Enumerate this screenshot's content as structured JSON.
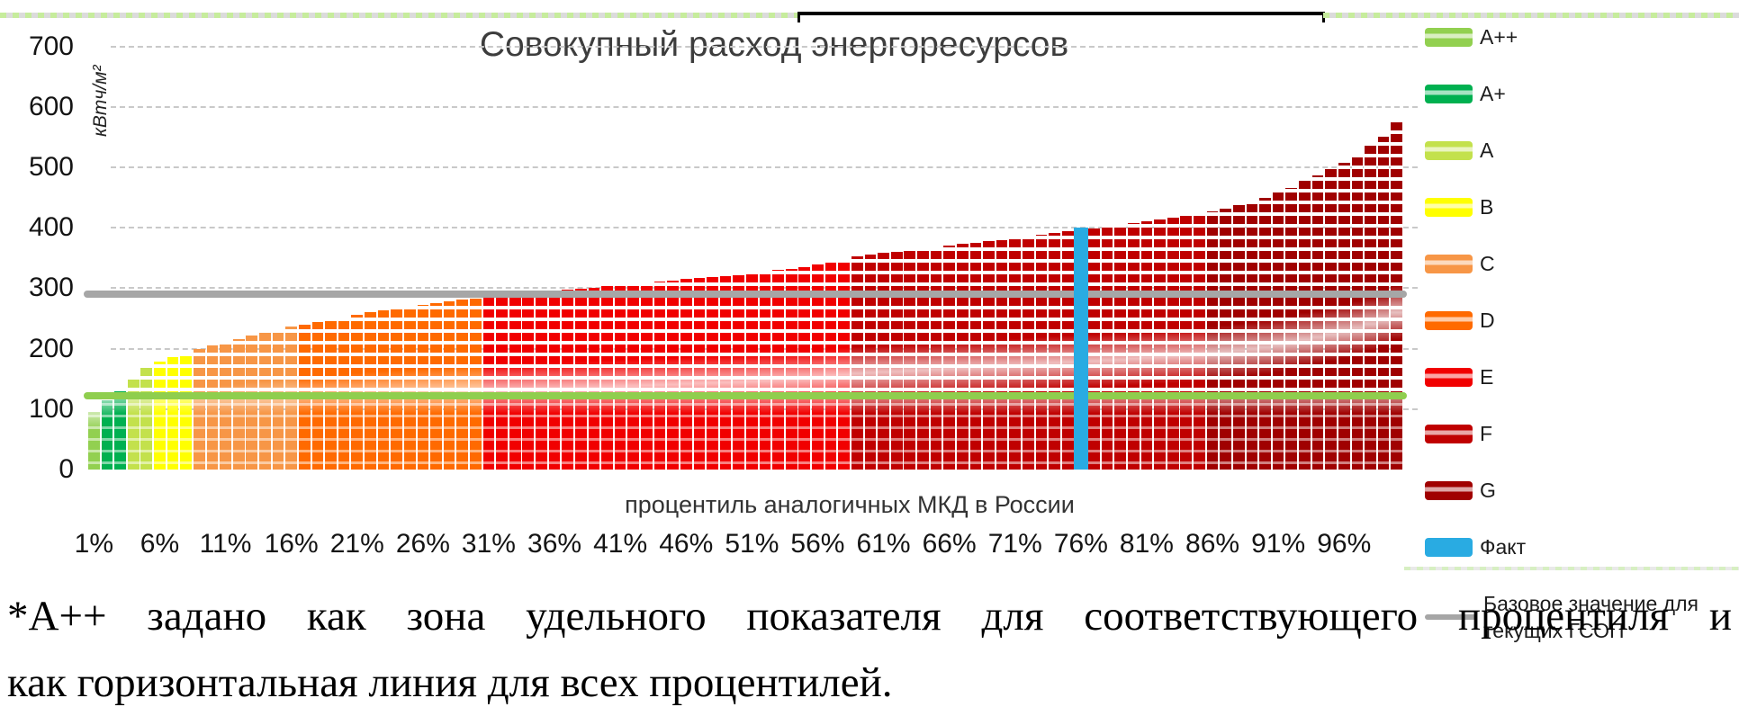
{
  "chart": {
    "title": "Совокупный расход энергоресурсов",
    "title_color": "#3d3d3d",
    "y_axis": {
      "unit": "кВтч/м²",
      "ticks": [
        700,
        600,
        500,
        400,
        300,
        200,
        100,
        0
      ],
      "max": 700
    },
    "x_axis": {
      "title": "процентиль аналогичных МКД в России",
      "tick_labels": [
        "1%",
        "6%",
        "11%",
        "16%",
        "21%",
        "26%",
        "31%",
        "36%",
        "41%",
        "46%",
        "51%",
        "56%",
        "61%",
        "66%",
        "71%",
        "76%",
        "81%",
        "86%",
        "91%",
        "96%"
      ]
    }
  },
  "chart_data": {
    "type": "bar",
    "x_unit": "percentile",
    "x_range": [
      1,
      100
    ],
    "ylim": [
      0,
      700
    ],
    "grid": "dashed horizontal every 100",
    "values": [
      95,
      115,
      135,
      155,
      168,
      178,
      186,
      193,
      199,
      205,
      211,
      216,
      221,
      226,
      231,
      236,
      240,
      244,
      248,
      252,
      256,
      260,
      263,
      266,
      269,
      272,
      275,
      278,
      281,
      283,
      286,
      288,
      290,
      292,
      294,
      295,
      297,
      299,
      301,
      303,
      305,
      307,
      309,
      311,
      313,
      315,
      317,
      319,
      320,
      322,
      325,
      327,
      330,
      332,
      335,
      340,
      344,
      348,
      352,
      355,
      358,
      360,
      363,
      365,
      368,
      370,
      373,
      375,
      378,
      380,
      382,
      385,
      388,
      391,
      394,
      396,
      399,
      402,
      404,
      407,
      410,
      413,
      416,
      419,
      422,
      427,
      432,
      437,
      443,
      450,
      458,
      466,
      477,
      487,
      497,
      508,
      520,
      535,
      550,
      578
    ],
    "classes": [
      {
        "label": "A++",
        "from": 1,
        "to": 1,
        "color": "#92D050"
      },
      {
        "label": "A+",
        "from": 2,
        "to": 3,
        "color": "#00B050"
      },
      {
        "label": "A",
        "from": 4,
        "to": 5,
        "color": "#C3E14C"
      },
      {
        "label": "B",
        "from": 6,
        "to": 8,
        "color": "#FFFF00"
      },
      {
        "label": "C",
        "from": 9,
        "to": 16,
        "color": "#F79646"
      },
      {
        "label": "D",
        "from": 17,
        "to": 30,
        "color": "#FF6A00"
      },
      {
        "label": "E",
        "from": 31,
        "to": 58,
        "color": "#F10000"
      },
      {
        "label": "F",
        "from": 59,
        "to": 85,
        "color": "#C00000"
      },
      {
        "label": "G",
        "from": 86,
        "to": 100,
        "color": "#A00000"
      }
    ],
    "fact": {
      "label": "Факт",
      "percentile": 76,
      "value": 400,
      "color": "#29ABE2"
    },
    "baseline": {
      "label": "Базовое значение для текущих ГСОП",
      "value": 290,
      "color": "#A6A6A6"
    },
    "a_plus_plus_line": {
      "label": "A++",
      "value": 122,
      "color": "#8FCE4E"
    }
  },
  "legend": {
    "items": [
      {
        "label": "A++",
        "type": "bar",
        "color": "#92D050"
      },
      {
        "label": "A+",
        "type": "bar",
        "color": "#00B050"
      },
      {
        "label": "A",
        "type": "bar",
        "color": "#C3E14C"
      },
      {
        "label": "B",
        "type": "bar",
        "color": "#FFFF00"
      },
      {
        "label": "C",
        "type": "bar",
        "color": "#F79646"
      },
      {
        "label": "D",
        "type": "bar",
        "color": "#FF6A00"
      },
      {
        "label": "E",
        "type": "bar",
        "color": "#F10000"
      },
      {
        "label": "F",
        "type": "bar",
        "color": "#C00000"
      },
      {
        "label": "G",
        "type": "bar",
        "color": "#A00000"
      },
      {
        "label": "Факт",
        "type": "bar-solid",
        "color": "#29ABE2"
      },
      {
        "label": "Базовое значение для текущих ГСОП",
        "type": "line",
        "color": "#A6A6A6"
      }
    ]
  },
  "footnote": {
    "line1": "*А++ задано как зона удельного показателя для соответствующего процентиля и",
    "line2": "как горизонтальная линия для всех процентилей."
  }
}
